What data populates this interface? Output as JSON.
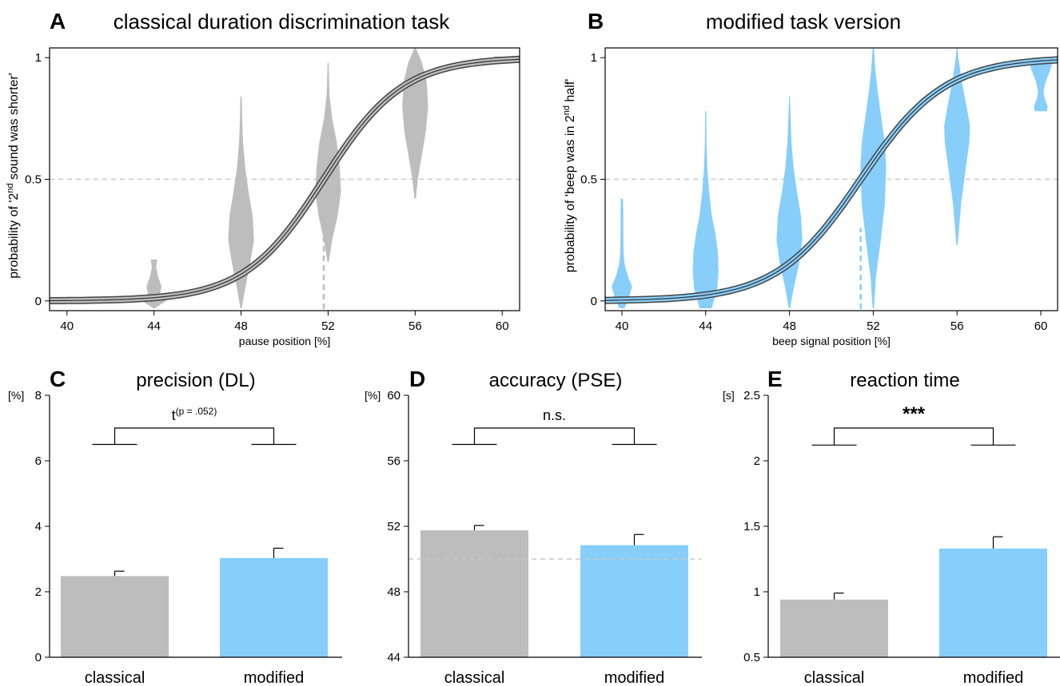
{
  "chart_data": [
    {
      "panel": "A",
      "type": "violin+sigmoid",
      "title": "classical duration discrimination task",
      "xlabel": "pause position [%]",
      "ylabel": [
        "probability of '2",
        "nd",
        " sound was shorter'"
      ],
      "xticks": [
        "40",
        "44",
        "48",
        "52",
        "56",
        "60"
      ],
      "yticks": [
        "0",
        "0.5",
        "1"
      ],
      "xlim": [
        39.2,
        60.8
      ],
      "ylim": [
        -0.04,
        1.04
      ],
      "color": "#bdbdbd",
      "curve_color": "#bdbdbd",
      "pse": 51.8,
      "slope_k": 0.55,
      "reference_y": 0.5,
      "violins": [
        {
          "x": 44,
          "y": [
            -0.03,
            0.0,
            0.03,
            0.06,
            0.1,
            0.14,
            0.17
          ],
          "w": [
            0.05,
            0.9,
            0.45,
            0.55,
            0.3,
            0.15,
            0.25
          ]
        },
        {
          "x": 48,
          "y": [
            -0.03,
            0.05,
            0.15,
            0.25,
            0.35,
            0.45,
            0.55,
            0.65,
            0.75,
            0.84
          ],
          "w": [
            0.05,
            0.3,
            0.65,
            0.95,
            0.85,
            0.55,
            0.3,
            0.15,
            0.08,
            0.05
          ]
        },
        {
          "x": 52,
          "y": [
            0.16,
            0.25,
            0.35,
            0.45,
            0.55,
            0.65,
            0.75,
            0.85,
            0.98
          ],
          "w": [
            0.05,
            0.3,
            0.7,
            0.95,
            0.85,
            0.65,
            0.3,
            0.1,
            0.04
          ]
        },
        {
          "x": 56,
          "y": [
            0.42,
            0.5,
            0.6,
            0.7,
            0.8,
            0.9,
            0.98,
            1.04
          ],
          "w": [
            0.05,
            0.2,
            0.5,
            0.8,
            0.95,
            0.85,
            0.5,
            0.05
          ]
        },
        {
          "x": 60,
          "y": [
            0.995,
            1.005
          ],
          "w": [
            0.6,
            0.6
          ]
        }
      ]
    },
    {
      "panel": "B",
      "type": "violin+sigmoid",
      "title": "modified task version",
      "xlabel": "beep signal position [%]",
      "ylabel": [
        "probability of 'beep was in 2",
        "nd",
        " half'"
      ],
      "xticks": [
        "40",
        "44",
        "48",
        "52",
        "56",
        "60"
      ],
      "yticks": [
        "0",
        "0.5",
        "1"
      ],
      "xlim": [
        39.2,
        60.8
      ],
      "ylim": [
        -0.04,
        1.04
      ],
      "color": "#87cefa",
      "curve_color": "#87cefa",
      "pse": 51.4,
      "slope_k": 0.5,
      "reference_y": 0.5,
      "violins": [
        {
          "x": 40,
          "y": [
            -0.03,
            0.02,
            0.06,
            0.1,
            0.15,
            0.2,
            0.28,
            0.36,
            0.42
          ],
          "w": [
            0.2,
            0.55,
            0.75,
            0.45,
            0.2,
            0.12,
            0.1,
            0.1,
            0.08
          ]
        },
        {
          "x": 44,
          "y": [
            -0.03,
            0.05,
            0.12,
            0.2,
            0.28,
            0.35,
            0.45,
            0.55,
            0.65,
            0.78
          ],
          "w": [
            0.45,
            0.85,
            0.95,
            0.9,
            0.7,
            0.45,
            0.25,
            0.12,
            0.06,
            0.04
          ]
        },
        {
          "x": 48,
          "y": [
            -0.03,
            0.05,
            0.15,
            0.25,
            0.35,
            0.45,
            0.55,
            0.65,
            0.75,
            0.84
          ],
          "w": [
            0.05,
            0.3,
            0.7,
            0.95,
            0.85,
            0.55,
            0.3,
            0.15,
            0.08,
            0.03
          ]
        },
        {
          "x": 52,
          "y": [
            -0.03,
            0.1,
            0.25,
            0.4,
            0.55,
            0.65,
            0.75,
            0.85,
            0.95,
            1.04
          ],
          "w": [
            0.05,
            0.2,
            0.55,
            0.85,
            0.95,
            0.85,
            0.6,
            0.35,
            0.15,
            0.05
          ]
        },
        {
          "x": 56,
          "y": [
            0.23,
            0.4,
            0.55,
            0.65,
            0.72,
            0.8,
            0.9,
            1.0,
            1.04
          ],
          "w": [
            0.05,
            0.3,
            0.65,
            0.9,
            0.95,
            0.7,
            0.35,
            0.1,
            0.03
          ]
        },
        {
          "x": 60,
          "y": [
            0.78,
            0.8,
            0.83,
            0.86,
            0.9,
            0.95,
            0.98,
            1.0
          ],
          "w": [
            0.45,
            0.5,
            0.3,
            0.2,
            0.35,
            0.7,
            0.85,
            0.6
          ]
        }
      ]
    },
    {
      "panel": "C",
      "type": "bar",
      "title": "precision (DL)",
      "unit": "[%]",
      "categories": [
        "classical",
        "modified"
      ],
      "values": [
        2.48,
        3.03
      ],
      "errors": [
        0.15,
        0.3
      ],
      "colors": [
        "#bdbdbd",
        "#87cefa"
      ],
      "yticks": [
        "0",
        "2",
        "4",
        "6",
        "8"
      ],
      "ylim": [
        0,
        8
      ],
      "bracket_y": 6.5,
      "bracket_top": 7.0,
      "significance": {
        "main": "t",
        "sup": "(p = .052)"
      },
      "reference_y": null
    },
    {
      "panel": "D",
      "type": "bar",
      "title": "accuracy (PSE)",
      "unit": "[%]",
      "categories": [
        "classical",
        "modified"
      ],
      "values": [
        51.75,
        50.85
      ],
      "errors": [
        0.3,
        0.65
      ],
      "colors": [
        "#bdbdbd",
        "#87cefa"
      ],
      "yticks": [
        "44",
        "48",
        "52",
        "56",
        "60"
      ],
      "ylim": [
        44,
        60
      ],
      "bracket_y": 57.0,
      "bracket_top": 58.0,
      "significance": {
        "main": "n.s.",
        "sup": ""
      },
      "reference_y": 50
    },
    {
      "panel": "E",
      "type": "bar",
      "title": "reaction time",
      "unit": "[s]",
      "categories": [
        "classical",
        "modified"
      ],
      "values": [
        0.94,
        1.33
      ],
      "errors": [
        0.05,
        0.09
      ],
      "colors": [
        "#bdbdbd",
        "#87cefa"
      ],
      "yticks": [
        "0.5",
        "1",
        "1.5",
        "2",
        "2.5"
      ],
      "ylim": [
        0.5,
        2.5
      ],
      "bracket_y": 2.12,
      "bracket_top": 2.25,
      "significance": {
        "main": "***",
        "sup": ""
      },
      "reference_y": null
    }
  ]
}
